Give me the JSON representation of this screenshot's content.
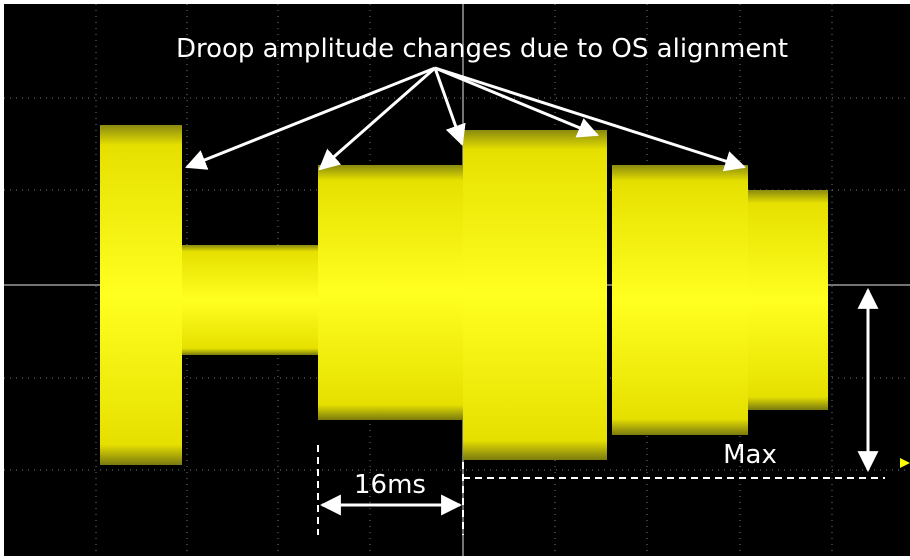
{
  "annotations": {
    "title": "Droop amplitude changes due to OS alignment",
    "duration": "16ms",
    "max_label": "Max"
  }
}
